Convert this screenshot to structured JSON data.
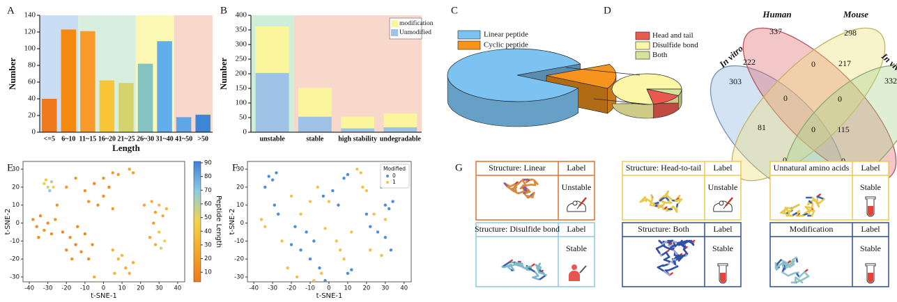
{
  "panel_labels": [
    "A",
    "B",
    "C",
    "D",
    "E",
    "F",
    "G"
  ],
  "chart_data": [
    {
      "type": "bar",
      "categories": [
        "<=5",
        "6~10",
        "11~15",
        "16~20",
        "21~25",
        "26~30",
        "31~40",
        "41~50",
        ">50"
      ],
      "values": [
        40,
        123,
        121,
        62,
        59,
        82,
        109,
        18,
        21
      ],
      "colors": [
        "#ef7a1b",
        "#f5890f",
        "#f99a2b",
        "#f7c535",
        "#d5d46c",
        "#84c3bf",
        "#62aeea",
        "#60a6e6",
        "#3d86d7"
      ],
      "xlabel": "Length",
      "ylabel": "Number",
      "ylim": [
        0,
        140
      ],
      "yticks": [
        0,
        20,
        40,
        60,
        80,
        100,
        120,
        140
      ]
    },
    {
      "type": "stacked_bar",
      "categories": [
        "unstable",
        "stable",
        "high stability",
        "undegradable"
      ],
      "series": [
        {
          "name": "Unmodified",
          "color": "#9fc3e7",
          "values": [
            203,
            53,
            13,
            17
          ]
        },
        {
          "name": "modification",
          "color": "#fbf59b",
          "values": [
            159,
            99,
            40,
            47
          ]
        }
      ],
      "ylabel": "Number",
      "ylim": [
        0,
        400
      ],
      "yticks": [
        0,
        50,
        100,
        150,
        200,
        250,
        300,
        350,
        400
      ]
    },
    {
      "type": "pie",
      "categories": [
        "Linear peptide",
        "Cyclic peptide"
      ],
      "values": [
        85,
        15
      ],
      "colors": [
        "#7cc3f2",
        "#f7941d"
      ]
    },
    {
      "type": "pie",
      "categories": [
        "Head and tail",
        "Disulfide bond",
        "Both"
      ],
      "values": [
        15,
        78,
        7
      ],
      "colors": [
        "#ea5a50",
        "#fbf7a6",
        "#d4e49a"
      ]
    },
    {
      "type": "venn",
      "sets": [
        {
          "name": "In vitro",
          "color": "#8db6e3"
        },
        {
          "name": "Human",
          "color": "#e0686f"
        },
        {
          "name": "Mouse",
          "color": "#efe07a"
        },
        {
          "name": "In vivo",
          "color": "#a8d58f"
        }
      ],
      "regions": [
        337,
        298,
        303,
        332,
        222,
        0,
        217,
        0,
        0,
        81,
        0,
        115,
        0,
        0,
        0
      ]
    },
    {
      "type": "scatter",
      "x": [
        -32,
        -30,
        -28,
        -29,
        -31,
        -27,
        -38,
        -36,
        -34,
        -32,
        -30,
        -28,
        -35,
        -26,
        -22,
        -18,
        -15,
        -20,
        -12,
        -10,
        -14,
        -8,
        -17,
        -6,
        -10,
        -5,
        0,
        -3,
        3,
        -8,
        5,
        0,
        5,
        8,
        14,
        16,
        22,
        26,
        28,
        30,
        32,
        34,
        27,
        30,
        33,
        28,
        31,
        25,
        5,
        8,
        12,
        10,
        14,
        6,
        16,
        -5,
        -3,
        -20,
        -15,
        -25
      ],
      "y": [
        22,
        20,
        23,
        18,
        24,
        20,
        2,
        -2,
        4,
        -4,
        0,
        -6,
        -8,
        2,
        -5,
        -8,
        -12,
        -15,
        -16,
        -6,
        -2,
        -20,
        -20,
        -12,
        18,
        22,
        15,
        10,
        20,
        12,
        8,
        25,
        28,
        27,
        30,
        28,
        10,
        12,
        6,
        10,
        4,
        8,
        0,
        -5,
        -10,
        -12,
        -14,
        -8,
        -15,
        -20,
        -25,
        -18,
        -28,
        -28,
        -22,
        -30,
        -33,
        20,
        25,
        10
      ],
      "color_values": [
        45,
        55,
        60,
        70,
        40,
        50,
        12,
        15,
        10,
        14,
        13,
        12,
        11,
        15,
        10,
        12,
        9,
        11,
        13,
        10,
        12,
        11,
        14,
        12,
        15,
        12,
        14,
        13,
        11,
        16,
        18,
        15,
        20,
        18,
        25,
        22,
        25,
        30,
        22,
        35,
        28,
        32,
        20,
        40,
        45,
        30,
        55,
        25,
        30,
        32,
        28,
        35,
        30,
        33,
        27,
        30,
        32,
        20,
        18,
        16
      ],
      "clim": [
        3,
        91
      ],
      "colormap": [
        "#ee7a1c",
        "#f4a72a",
        "#f3d34a",
        "#8fcde0",
        "#3d7fd6"
      ],
      "colorbar_label": "Peptide Length",
      "colorbar_ticks": [
        10,
        20,
        30,
        40,
        50,
        60,
        70,
        80,
        90
      ],
      "xlabel": "t-SNE-1",
      "ylabel": "t-SNE-2",
      "xlim": [
        -43.4,
        43.8
      ],
      "ylim": [
        -32.7,
        34.3
      ],
      "xticks": [
        -40,
        -30,
        -20,
        -10,
        0,
        10,
        20,
        30,
        40
      ],
      "yticks": [
        -30,
        -20,
        -10,
        0,
        10,
        20,
        30
      ]
    },
    {
      "type": "scatter",
      "legend_title": "Modified",
      "series": [
        {
          "name": "0",
          "color": "#4a8fd8",
          "x": [
            -32,
            -30,
            -28,
            -34,
            -29,
            -27,
            -12,
            -8,
            -15,
            -10,
            -5,
            8,
            10,
            -3,
            2,
            5,
            28,
            30,
            32,
            34,
            26,
            30,
            33,
            10,
            12,
            -2,
            20,
            22,
            -18,
            -20
          ],
          "y": [
            26,
            24,
            28,
            20,
            10,
            5,
            -5,
            -10,
            -15,
            -20,
            -25,
            25,
            27,
            15,
            18,
            10,
            20,
            10,
            8,
            12,
            -5,
            -8,
            -15,
            -28,
            -26,
            -32,
            5,
            -2,
            -2,
            -12
          ]
        },
        {
          "name": "1",
          "color": "#f2c14e",
          "x": [
            -36,
            -34,
            -25,
            -22,
            -17,
            -15,
            -10,
            -6,
            0,
            15,
            17,
            22,
            24,
            28,
            30,
            6,
            8,
            -4,
            -8,
            4,
            18,
            20,
            -20,
            -2,
            12
          ],
          "y": [
            2,
            -2,
            -10,
            -25,
            -30,
            5,
            12,
            20,
            12,
            30,
            28,
            -15,
            5,
            -18,
            2,
            -15,
            -20,
            -28,
            -32,
            -10,
            20,
            18,
            15,
            -3,
            -5
          ]
        }
      ],
      "xlabel": "t-SNE-1",
      "ylabel": "t-SNE-2",
      "xlim": [
        -43.4,
        43.8
      ],
      "ylim": [
        -32.7,
        34.3
      ],
      "xticks": [
        -40,
        -30,
        -20,
        -10,
        0,
        10,
        20,
        30,
        40
      ],
      "yticks": [
        -30,
        -20,
        -10,
        0,
        10,
        20,
        30
      ]
    }
  ],
  "cards": [
    {
      "title": "Structure: Linear",
      "label_header": "Label",
      "label": "Unstable"
    },
    {
      "title": "Structure: Head-to-tail",
      "label_header": "Label",
      "label": "Unstable"
    },
    {
      "title": "Unnatural amino acids",
      "label_header": "Label",
      "label": "Stable"
    },
    {
      "title": "Structure: Disulfide bond",
      "label_header": "Label",
      "label": "Stable"
    },
    {
      "title": "Structure: Both",
      "label_header": "Label",
      "label": "Stable"
    },
    {
      "title": "Modification",
      "label_header": "Label",
      "label": "Stable"
    }
  ]
}
